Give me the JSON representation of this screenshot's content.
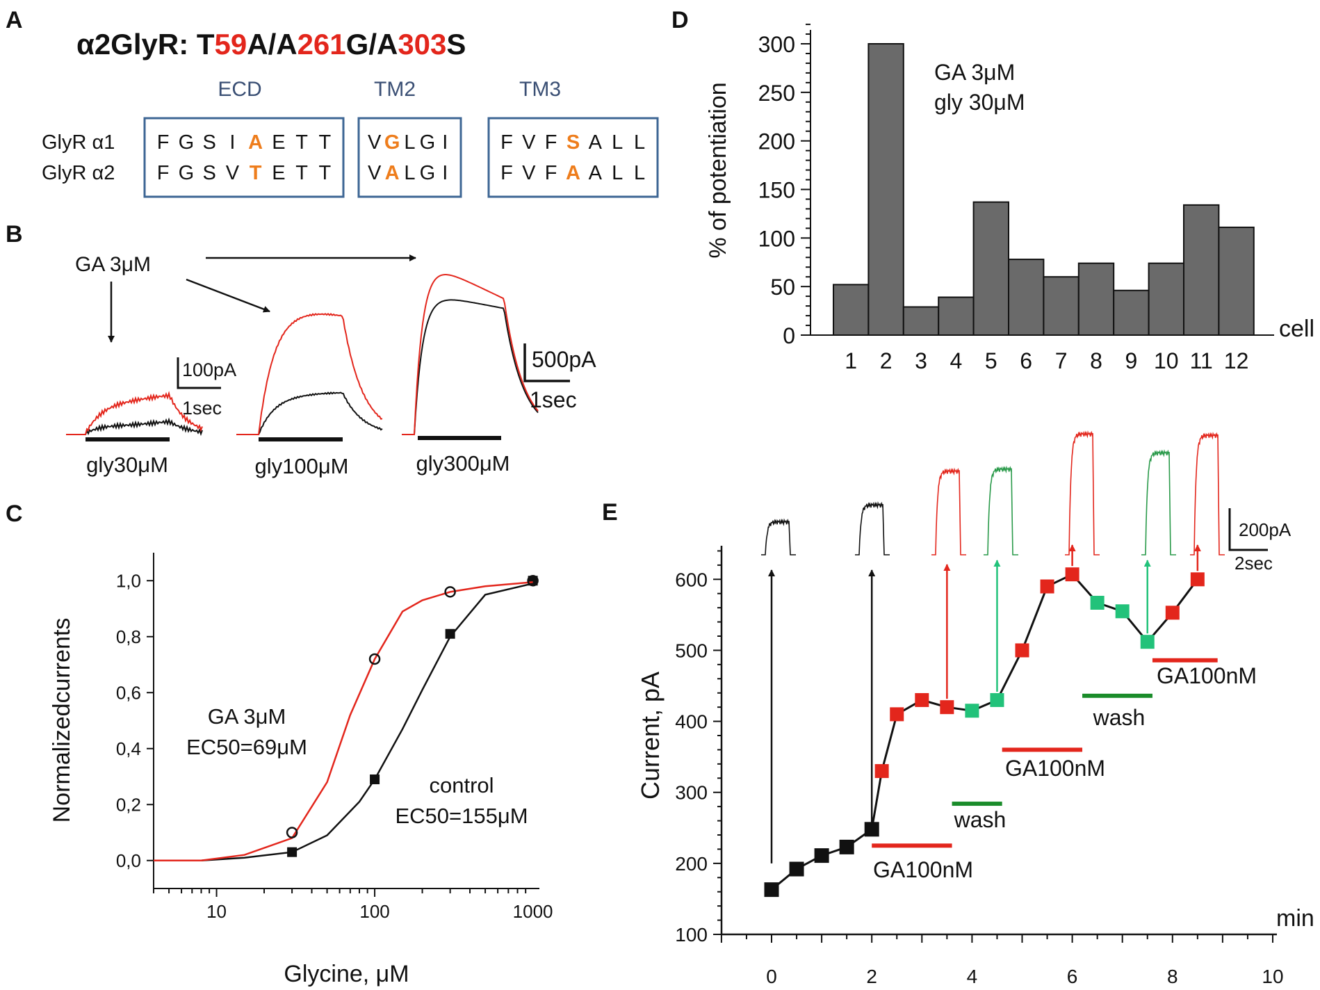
{
  "panel_letters": [
    "A",
    "B",
    "C",
    "D",
    "E"
  ],
  "colors": {
    "red": "#e3261c",
    "black": "#111111",
    "orange": "#ee7d1c",
    "green": "#1a8c2a",
    "teal_marker": "#22c27a",
    "box": "#3d6694",
    "box_label": "#3a4f74",
    "bar_fill": "#6a6a6a"
  },
  "panelA": {
    "title_parts": [
      {
        "text": "α2GlyR: T",
        "color": "black"
      },
      {
        "text": "59",
        "color": "red"
      },
      {
        "text": "A/A",
        "color": "black"
      },
      {
        "text": "261",
        "color": "red"
      },
      {
        "text": "G/A",
        "color": "black"
      },
      {
        "text": "303",
        "color": "red"
      },
      {
        "text": "S",
        "color": "black"
      }
    ],
    "row_labels": [
      "GlyR α1",
      "GlyR α2"
    ],
    "boxes": [
      {
        "label": "ECD",
        "rows": [
          [
            "F",
            "G",
            "S",
            "I",
            "A",
            "E",
            "T",
            "T"
          ],
          [
            "F",
            "G",
            "S",
            "V",
            "T",
            "E",
            "T",
            "T"
          ]
        ],
        "highlight": 4
      },
      {
        "label": "TM2",
        "rows": [
          [
            "V",
            "G",
            "L",
            "G",
            "I"
          ],
          [
            "V",
            "A",
            "L",
            "G",
            "I"
          ]
        ],
        "highlight": 1
      },
      {
        "label": "TM3",
        "rows": [
          [
            "F",
            "V",
            "F",
            "S",
            "A",
            "L",
            "L"
          ],
          [
            "F",
            "V",
            "F",
            "A",
            "A",
            "L",
            "L"
          ]
        ],
        "highlight": 3
      }
    ]
  },
  "panelB": {
    "annotation": "GA 3μM",
    "scale1": {
      "current": "100pA",
      "time": "1sec"
    },
    "scale2": {
      "current": "500pA",
      "time": "1sec"
    },
    "trace_labels": [
      "gly30μM",
      "gly100μM",
      "gly300μM"
    ],
    "traces": [
      {
        "gly_uM": 30,
        "control_pA": 55,
        "ga_pA": 175
      },
      {
        "gly_uM": 100,
        "control_pA": 200,
        "ga_pA": 650
      },
      {
        "gly_uM": 300,
        "control_pA": 850,
        "ga_pA": 1060
      }
    ]
  },
  "chart_data": [
    {
      "id": "C",
      "type": "line",
      "xscale": "log",
      "xlabel": "Glycine, μM",
      "ylabel": "Normalizedcurrents",
      "xlim": [
        4,
        1100
      ],
      "ylim": [
        -0.1,
        1.1
      ],
      "xticklabels": [
        "10",
        "100",
        "1000"
      ],
      "xtick_values": [
        10,
        100,
        1000
      ],
      "yticklabels": [
        "0,0",
        "0,2",
        "0,4",
        "0,6",
        "0,8",
        "1,0"
      ],
      "ytick_values": [
        0.0,
        0.2,
        0.4,
        0.6,
        0.8,
        1.0
      ],
      "series": [
        {
          "name": "control",
          "label_lines": [
            "control",
            "EC50=155μM"
          ],
          "color": "black",
          "points": {
            "x": [
              30,
              100,
              300,
              1000
            ],
            "y": [
              0.03,
              0.29,
              0.81,
              1.0
            ]
          },
          "fit": {
            "x": [
              4,
              8,
              15,
              30,
              50,
              80,
              100,
              150,
              200,
              300,
              500,
              1000
            ],
            "y": [
              0.0,
              0.0,
              0.01,
              0.03,
              0.09,
              0.21,
              0.29,
              0.47,
              0.61,
              0.8,
              0.95,
              0.99
            ]
          }
        },
        {
          "name": "GA 3μM",
          "label_lines": [
            "GA 3μM",
            "EC50=69μM"
          ],
          "color": "red",
          "points": {
            "x": [
              30,
              100,
              300,
              1000
            ],
            "y": [
              0.1,
              0.72,
              0.96,
              1.0
            ]
          },
          "fit": {
            "x": [
              4,
              8,
              15,
              30,
              50,
              70,
              100,
              150,
              200,
              300,
              500,
              1000
            ],
            "y": [
              0.0,
              0.0,
              0.02,
              0.08,
              0.28,
              0.52,
              0.72,
              0.89,
              0.93,
              0.96,
              0.98,
              0.995
            ]
          }
        }
      ]
    },
    {
      "id": "D",
      "type": "bar",
      "ylabel": "% of potentiation",
      "xlabel": "cell",
      "categories": [
        "1",
        "2",
        "3",
        "4",
        "5",
        "6",
        "7",
        "8",
        "9",
        "10",
        "11",
        "12"
      ],
      "values": [
        52,
        300,
        29,
        39,
        137,
        78,
        60,
        74,
        46,
        74,
        134,
        111
      ],
      "ylim": [
        0,
        320
      ],
      "yticklabels": [
        "0",
        "50",
        "100",
        "150",
        "200",
        "250",
        "300"
      ],
      "ytick_values": [
        0,
        50,
        100,
        150,
        200,
        250,
        300
      ],
      "annotation_lines": [
        "GA 3μM",
        "gly 30μM"
      ]
    },
    {
      "id": "E",
      "type": "line",
      "xlabel": "min",
      "ylabel": "Current, pA",
      "xlim": [
        -1,
        10
      ],
      "ylim": [
        100,
        650
      ],
      "xticklabels": [
        "0",
        "2",
        "4",
        "6",
        "8",
        "10"
      ],
      "xtick_values": [
        0,
        2,
        4,
        6,
        8,
        10
      ],
      "yticklabels": [
        "100",
        "200",
        "300",
        "400",
        "500",
        "600"
      ],
      "ytick_values": [
        100,
        200,
        300,
        400,
        500,
        600
      ],
      "series": [
        {
          "name": "control",
          "color": "black",
          "x": [
            0,
            0.5,
            1,
            1.5,
            2
          ],
          "y": [
            163,
            192,
            211,
            223,
            248
          ]
        },
        {
          "name": "GA100nM",
          "color": "red",
          "x": [
            2.2,
            2.5,
            3,
            3.5
          ],
          "y": [
            330,
            410,
            430,
            420
          ]
        },
        {
          "name": "wash",
          "color": "green",
          "x": [
            4,
            4.5
          ],
          "y": [
            415,
            430
          ]
        },
        {
          "name": "GA100nM",
          "color": "red",
          "x": [
            5,
            5.5,
            6
          ],
          "y": [
            500,
            590,
            607
          ]
        },
        {
          "name": "wash",
          "color": "green",
          "x": [
            6.5,
            7,
            7.5
          ],
          "y": [
            567,
            555,
            512
          ]
        },
        {
          "name": "GA100nM",
          "color": "red",
          "x": [
            8,
            8.5
          ],
          "y": [
            553,
            600
          ]
        }
      ],
      "application_bars": [
        {
          "label": "GA100nM",
          "color": "red",
          "x0": 2,
          "x1": 3.6,
          "y": 225
        },
        {
          "label": "wash",
          "color": "green",
          "x0": 3.6,
          "x1": 4.6,
          "y": 284
        },
        {
          "label": "GA100nM",
          "color": "red",
          "x0": 4.6,
          "x1": 6.2,
          "y": 360
        },
        {
          "label": "wash",
          "color": "green",
          "x0": 6.2,
          "x1": 7.6,
          "y": 436
        },
        {
          "label": "GA100nM",
          "color": "red",
          "x0": 7.6,
          "x1": 8.9,
          "y": 486
        }
      ],
      "scale": {
        "current": "200pA",
        "time": "2sec"
      },
      "arrows": [
        {
          "x": 0,
          "from_y": 200,
          "color": "black"
        },
        {
          "x": 2,
          "from_y": 248,
          "color": "black"
        },
        {
          "x": 3.5,
          "from_y": 420,
          "color": "red"
        },
        {
          "x": 4.5,
          "from_y": 430,
          "color": "green"
        },
        {
          "x": 6,
          "from_y": 607,
          "color": "red"
        },
        {
          "x": 7.5,
          "from_y": 512,
          "color": "green"
        },
        {
          "x": 8.5,
          "from_y": 600,
          "color": "red"
        }
      ],
      "inset_traces": [
        {
          "color": "black",
          "amplitude_pA": 165
        },
        {
          "color": "black",
          "amplitude_pA": 250
        },
        {
          "color": "red",
          "amplitude_pA": 420
        },
        {
          "color": "green",
          "amplitude_pA": 430
        },
        {
          "color": "red",
          "amplitude_pA": 607
        },
        {
          "color": "green",
          "amplitude_pA": 512
        },
        {
          "color": "red",
          "amplitude_pA": 600
        }
      ]
    }
  ]
}
